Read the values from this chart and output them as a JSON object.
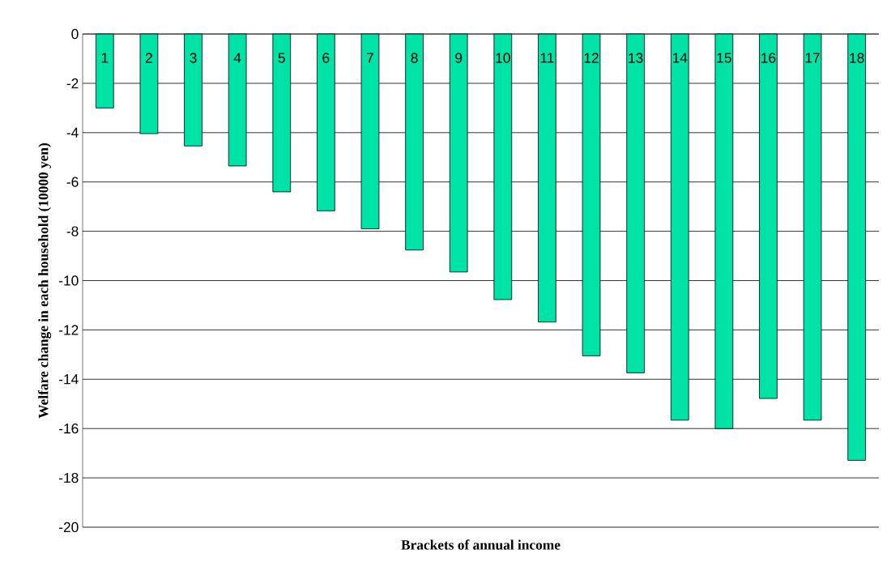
{
  "chart_data": {
    "type": "bar",
    "xlabel": "Brackets of annual income",
    "ylabel": "Welfare change in each household (10000 yen)",
    "categories": [
      "1",
      "2",
      "3",
      "4",
      "5",
      "6",
      "7",
      "8",
      "9",
      "10",
      "11",
      "12",
      "13",
      "14",
      "15",
      "16",
      "17",
      "18"
    ],
    "values": [
      -3.0,
      -4.04,
      -4.54,
      -5.35,
      -6.4,
      -7.17,
      -7.9,
      -8.76,
      -9.65,
      -10.77,
      -11.68,
      -13.05,
      -13.74,
      -15.66,
      -16.0,
      -14.78,
      -15.66,
      -17.29
    ],
    "color": "#00e3a6",
    "ylim": [
      -20,
      0
    ],
    "yticks": [
      -20,
      -18,
      -16,
      -14,
      -12,
      -10,
      -8,
      -6,
      -4,
      -2,
      0
    ],
    "grid": "y"
  }
}
